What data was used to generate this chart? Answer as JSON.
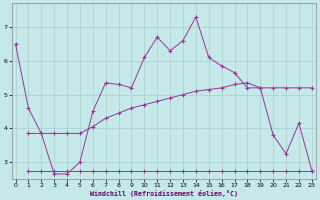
{
  "xlabel": "Windchill (Refroidissement éolien,°C)",
  "background_color": "#c5e8e8",
  "grid_color": "#aacfcf",
  "line_color": "#993399",
  "x_ticks": [
    0,
    1,
    2,
    3,
    4,
    5,
    6,
    7,
    8,
    9,
    10,
    11,
    12,
    13,
    14,
    15,
    16,
    17,
    18,
    19,
    20,
    21,
    22,
    23
  ],
  "y_ticks": [
    3,
    4,
    5,
    6,
    7
  ],
  "ylim": [
    2.5,
    7.7
  ],
  "xlim": [
    -0.3,
    23.3
  ],
  "line1_x": [
    0,
    1,
    2,
    3,
    4,
    5,
    6,
    7,
    8,
    9,
    10,
    11,
    12,
    13,
    14,
    15,
    16,
    17,
    18,
    19,
    20,
    21,
    22,
    23
  ],
  "line1_y": [
    6.5,
    4.6,
    3.85,
    2.65,
    2.65,
    3.0,
    4.5,
    5.35,
    5.3,
    5.2,
    6.1,
    6.7,
    6.3,
    6.6,
    7.3,
    6.1,
    5.85,
    5.65,
    5.2,
    5.2,
    3.8,
    3.25,
    4.15,
    2.75
  ],
  "line2_x": [
    1,
    2,
    3,
    4,
    5,
    6,
    7,
    8,
    9,
    10,
    11,
    12,
    13,
    14,
    15,
    16,
    17,
    18,
    19,
    20,
    21,
    22,
    23
  ],
  "line2_y": [
    2.75,
    2.75,
    2.75,
    2.75,
    2.75,
    2.75,
    2.75,
    2.75,
    2.75,
    2.75,
    2.75,
    2.75,
    2.75,
    2.75,
    2.75,
    2.75,
    2.75,
    2.75,
    2.75,
    2.75,
    2.75,
    2.75,
    2.75
  ],
  "line3_x": [
    1,
    2,
    3,
    4,
    5,
    6,
    7,
    8,
    9,
    10,
    11,
    12,
    13,
    14,
    15,
    16,
    17,
    18,
    19,
    20,
    21,
    22,
    23
  ],
  "line3_y": [
    3.85,
    3.85,
    3.85,
    3.85,
    3.85,
    4.05,
    4.3,
    4.45,
    4.6,
    4.7,
    4.8,
    4.9,
    5.0,
    5.1,
    5.15,
    5.2,
    5.3,
    5.35,
    5.2,
    5.2,
    5.2,
    5.2,
    5.2
  ]
}
